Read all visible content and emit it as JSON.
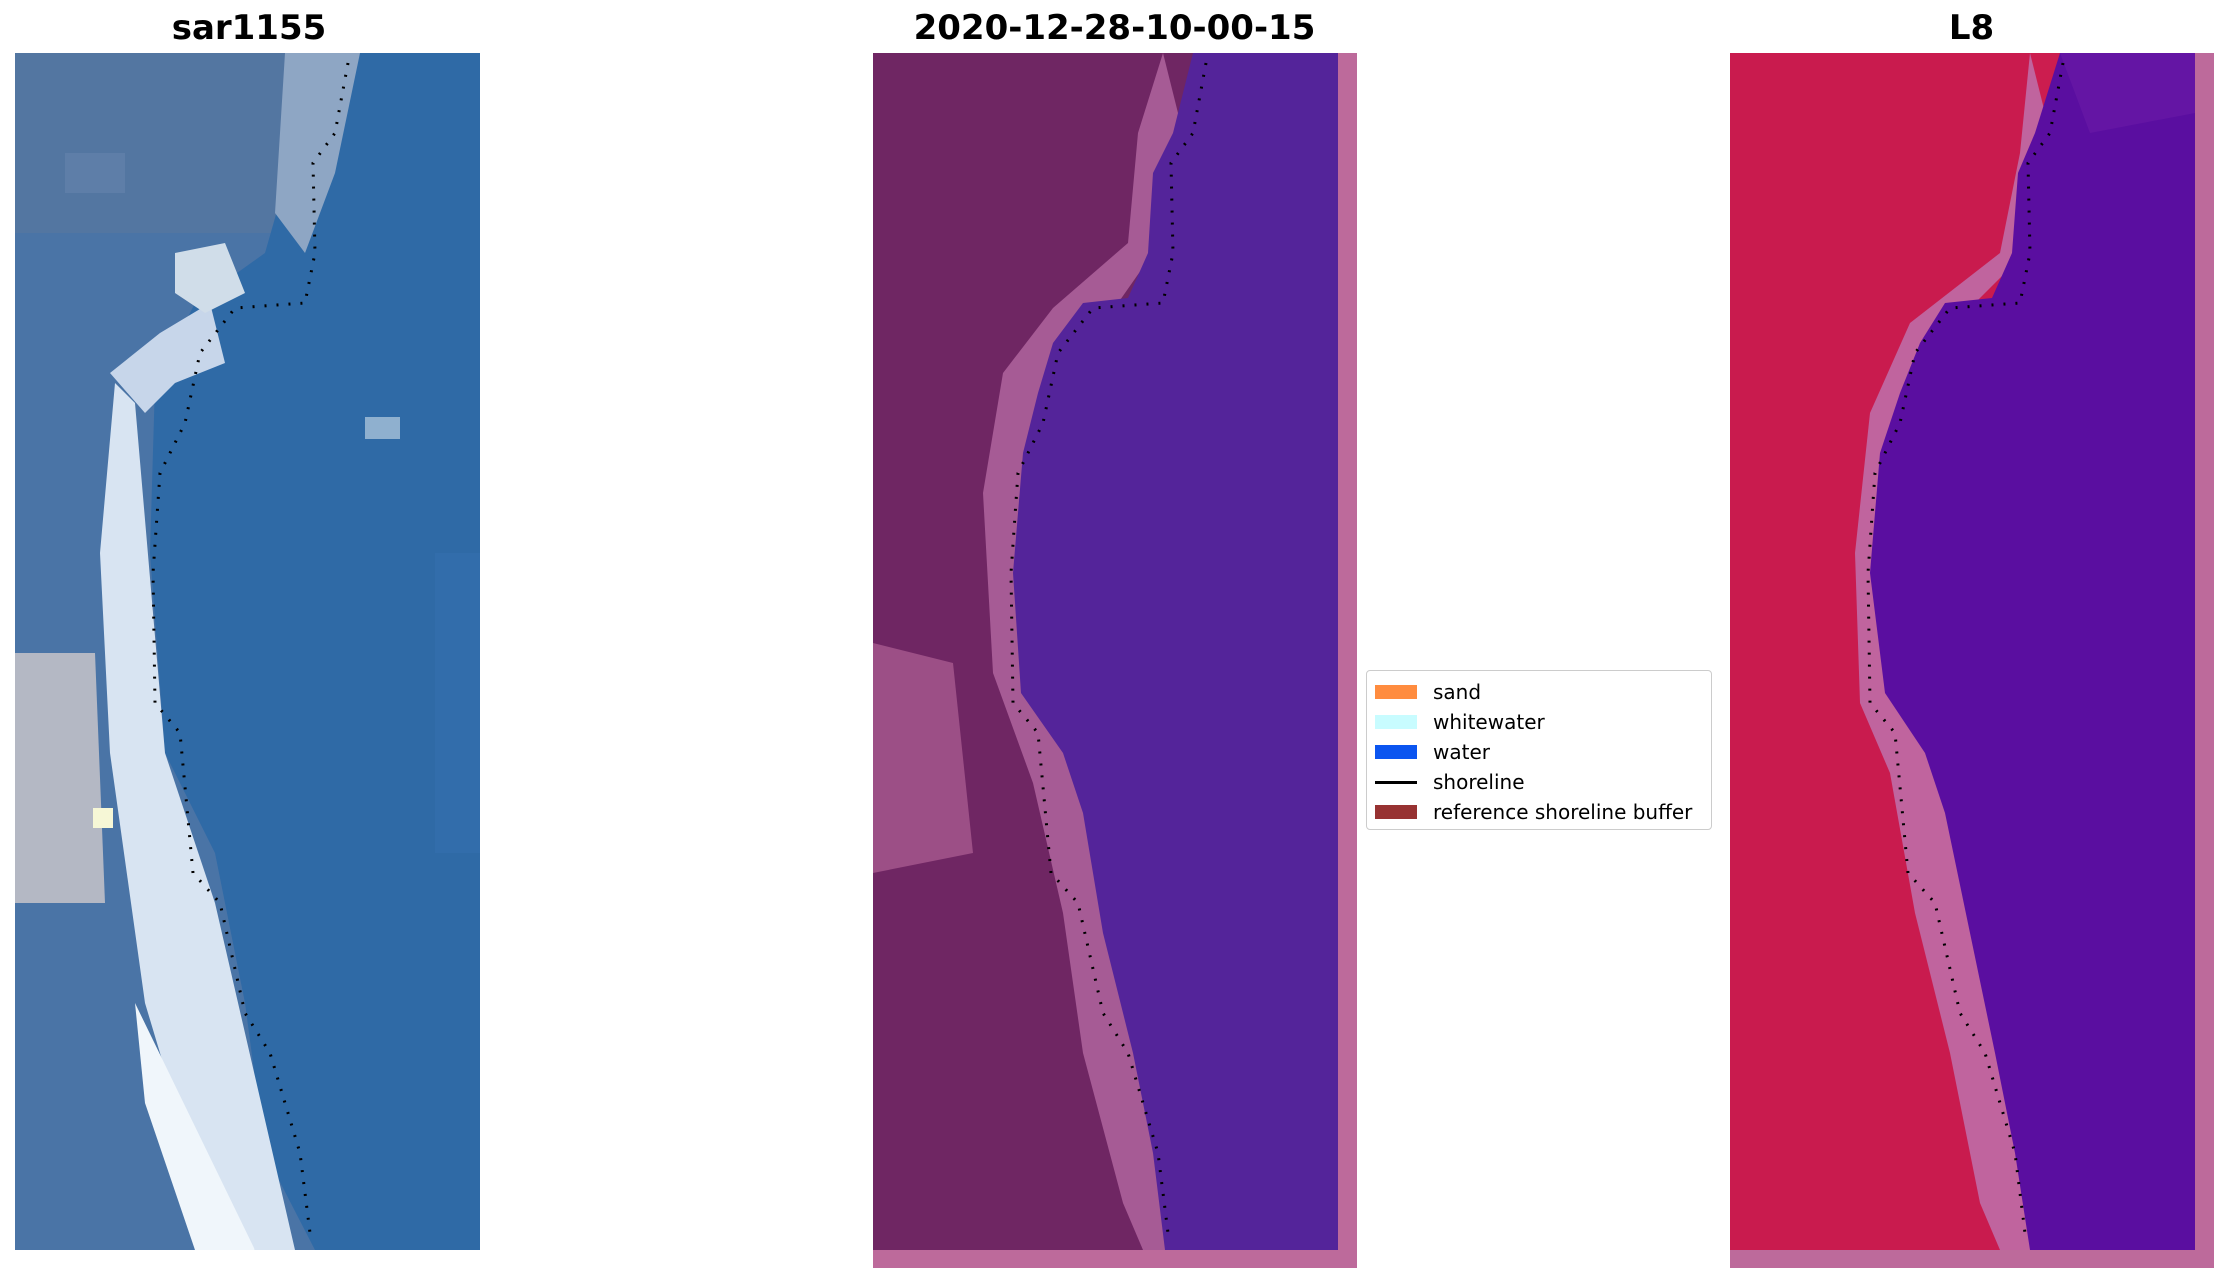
{
  "panels": [
    {
      "id": "rgb",
      "title": "sar1155",
      "colors": {
        "sea": "#2f6aa6",
        "land": "#4f77a5",
        "sand": "#dbe6f0"
      }
    },
    {
      "id": "classified",
      "title": "2020-12-28-10-00-15",
      "colors": {
        "water": "#54249a",
        "land": "#6f2663",
        "beach": "#a65b95",
        "border": "#bd6a9b"
      }
    },
    {
      "id": "mndwi",
      "title": "L8",
      "colors": {
        "water": "#5a0ea0",
        "land": "#cc1d4f",
        "beach": "#c0649e",
        "border": "#bd6a9b"
      }
    }
  ],
  "legend": {
    "items": [
      {
        "label": "sand",
        "type": "patch",
        "color": "#ff8c3f"
      },
      {
        "label": "whitewater",
        "type": "patch",
        "color": "#c8fcff"
      },
      {
        "label": "water",
        "type": "patch",
        "color": "#0b55f0"
      },
      {
        "label": "shoreline",
        "type": "line",
        "color": "#000000"
      },
      {
        "label": "reference shoreline buffer",
        "type": "patch",
        "color": "#973232"
      }
    ]
  }
}
